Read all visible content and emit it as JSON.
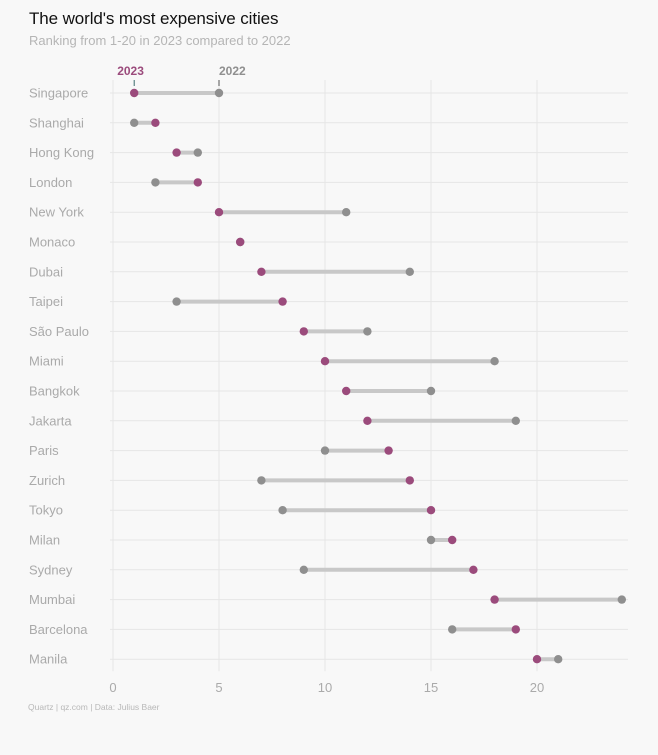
{
  "title": "The world's most expensive cities",
  "subtitle": "Ranking from 1-20 in 2023 compared to 2022",
  "footer": "Quartz | qz.com | Data: Julius Baer",
  "colors": {
    "y2023": "#9b4b7c",
    "y2022": "#8f8f8f",
    "connector": "#c8c8c8",
    "grid": "#e6e6e6"
  },
  "chart_data": {
    "type": "dumbbell",
    "title": "The world's most expensive cities",
    "subtitle": "Ranking from 1-20 in 2023 compared to 2022",
    "xlabel": "",
    "ylabel": "",
    "xlim": [
      0,
      24.2
    ],
    "xticks": [
      0,
      5,
      10,
      15,
      20
    ],
    "grid": true,
    "legend": {
      "position": "top-left",
      "items": [
        "2023",
        "2022"
      ]
    },
    "categories": [
      "Singapore",
      "Shanghai",
      "Hong Kong",
      "London",
      "New York",
      "Monaco",
      "Dubai",
      "Taipei",
      "São Paulo",
      "Miami",
      "Bangkok",
      "Jakarta",
      "Paris",
      "Zurich",
      "Tokyo",
      "Milan",
      "Sydney",
      "Mumbai",
      "Barcelona",
      "Manila"
    ],
    "series": [
      {
        "name": "2023",
        "values": [
          1,
          2,
          3,
          4,
          5,
          6,
          7,
          8,
          9,
          10,
          11,
          12,
          13,
          14,
          15,
          16,
          17,
          18,
          19,
          20
        ]
      },
      {
        "name": "2022",
        "values": [
          5,
          1,
          4,
          2,
          11,
          6,
          14,
          3,
          12,
          18,
          15,
          19,
          10,
          7,
          8,
          15,
          9,
          24,
          16,
          21
        ]
      }
    ]
  }
}
